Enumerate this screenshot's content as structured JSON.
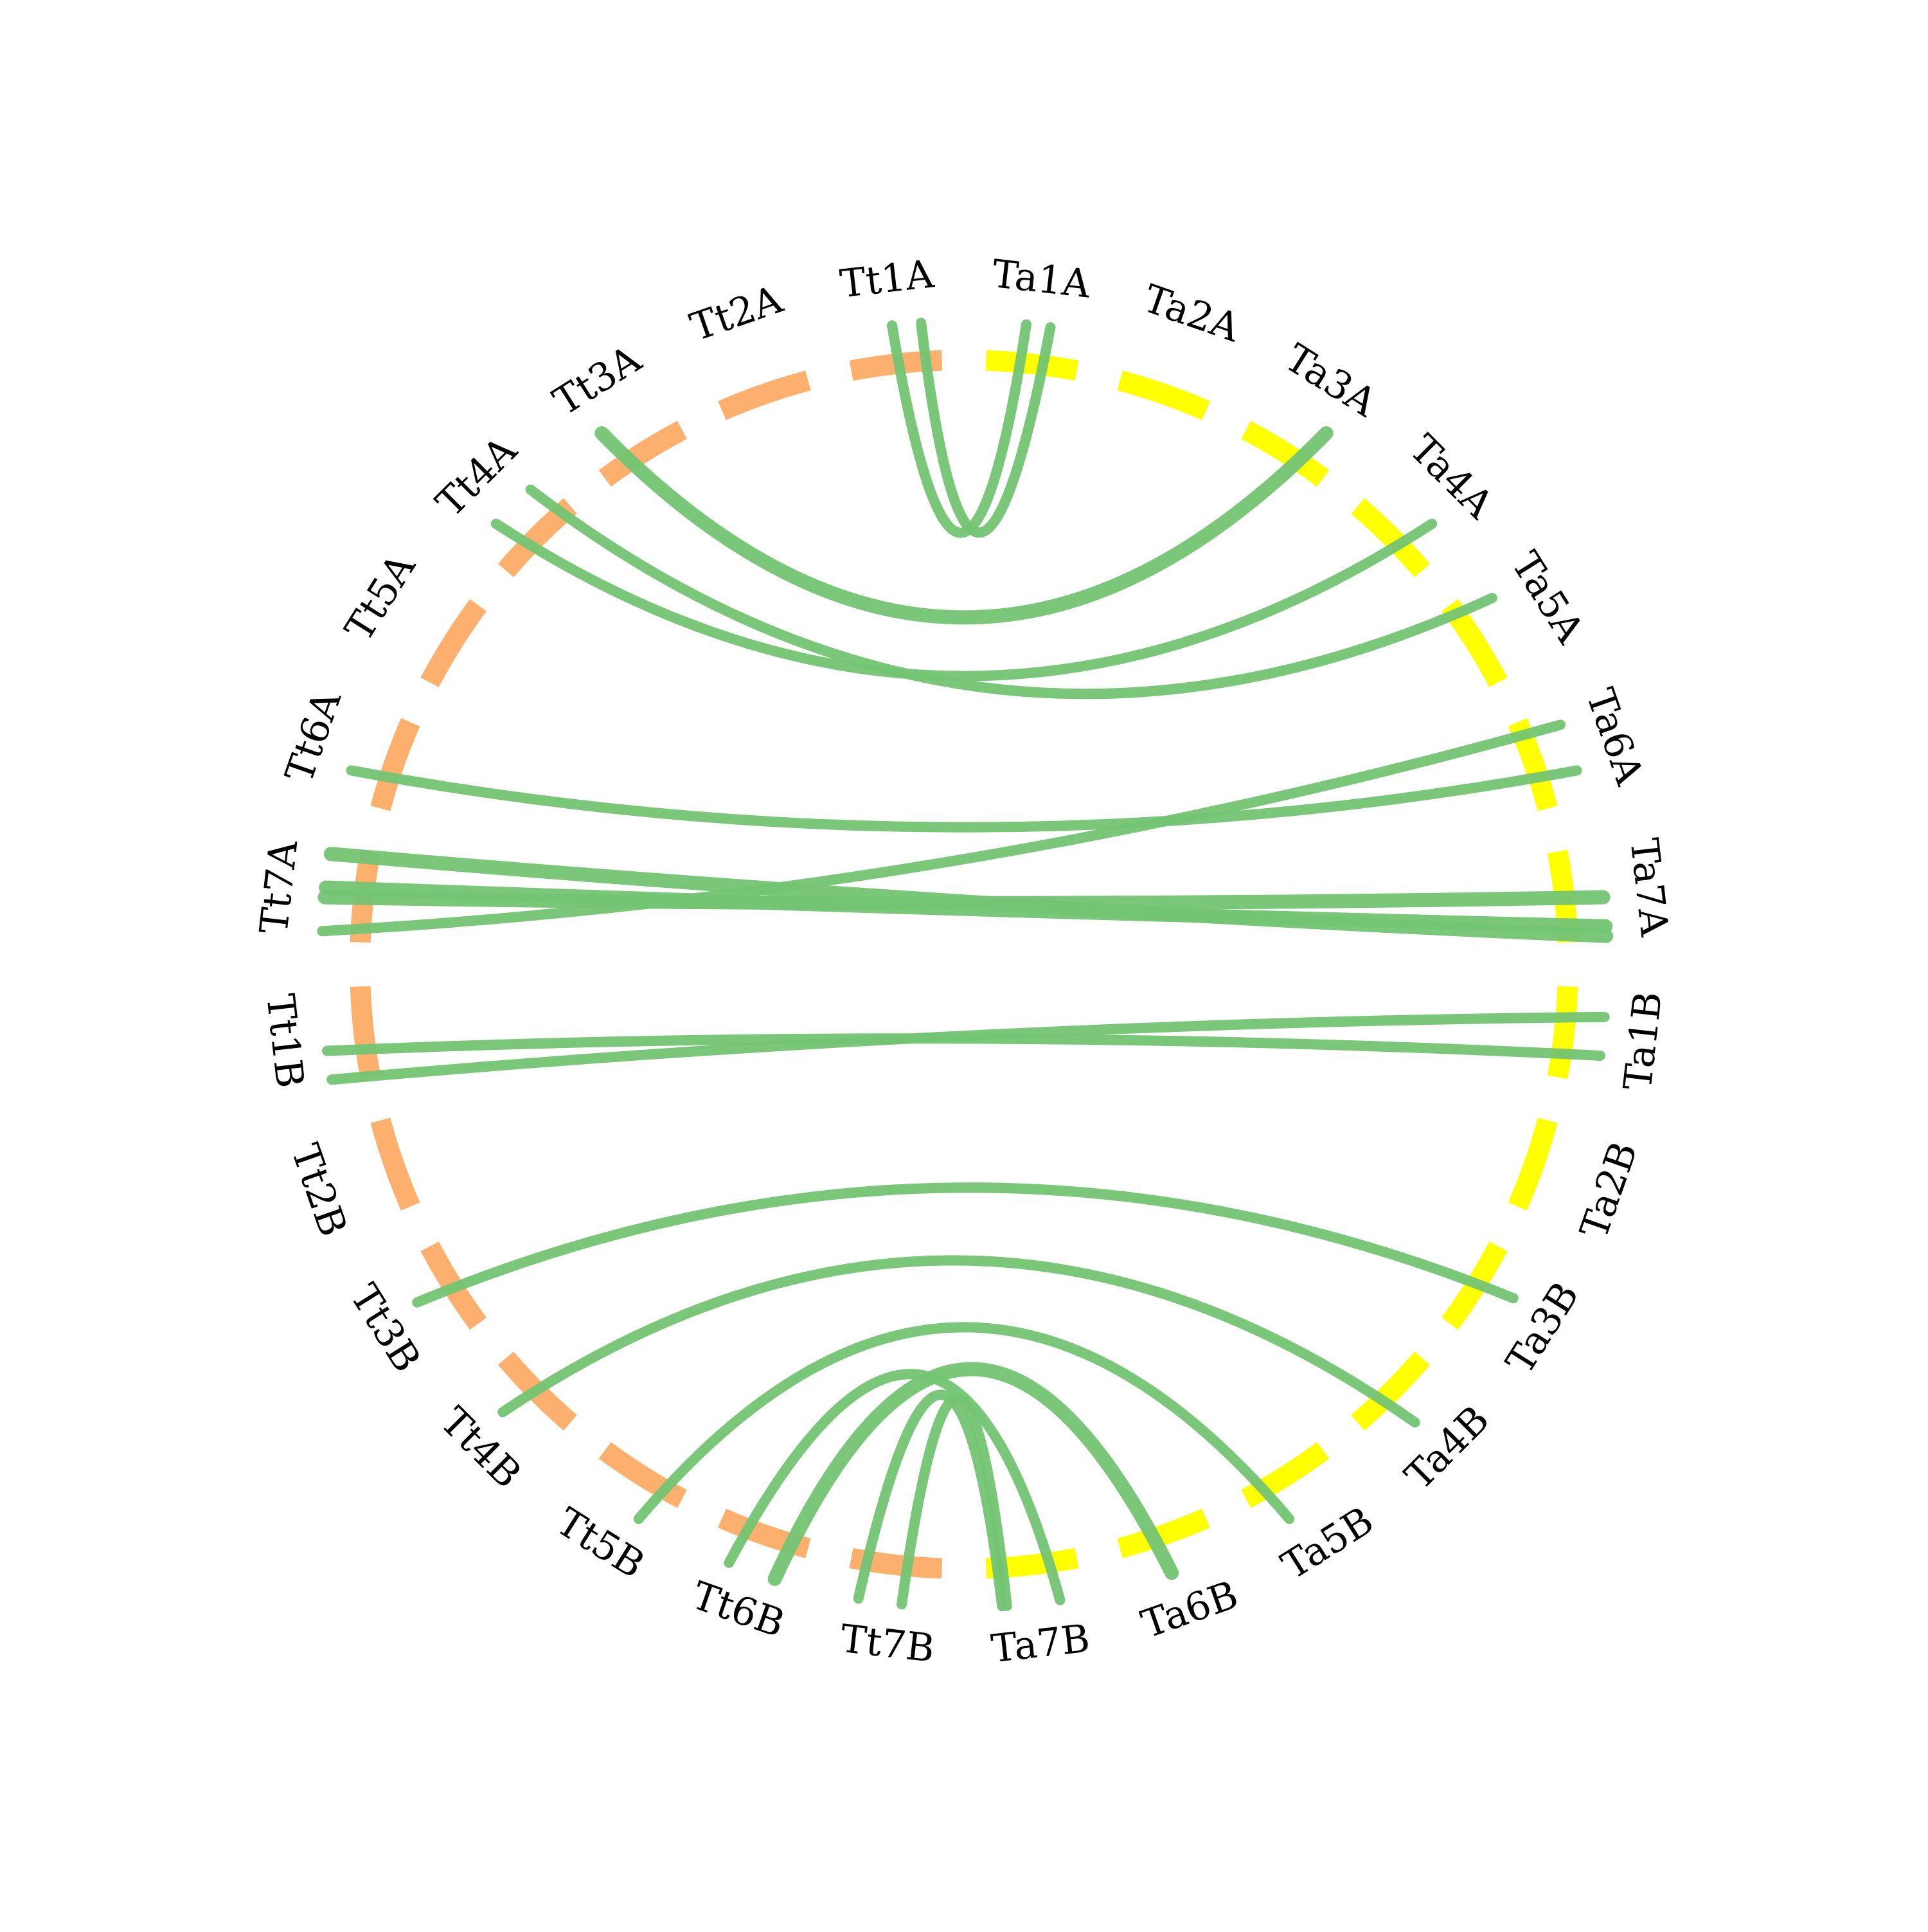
{
  "colors": {
    "group_tt": "#FDB06E",
    "group_ta": "#FFFF00",
    "link": "#73C473",
    "background": "#FFFFFF"
  },
  "chromosomes": [
    {
      "id": "Tt1A",
      "label": "Tt1A",
      "group": "tt"
    },
    {
      "id": "Tt2A",
      "label": "Tt2A",
      "group": "tt"
    },
    {
      "id": "Tt3A",
      "label": "Tt3A",
      "group": "tt"
    },
    {
      "id": "Tt4A",
      "label": "Tt4A",
      "group": "tt"
    },
    {
      "id": "Tt5A",
      "label": "Tt5A",
      "group": "tt"
    },
    {
      "id": "Tt6A",
      "label": "Tt6A",
      "group": "tt"
    },
    {
      "id": "Tt7A",
      "label": "Tt7A",
      "group": "tt"
    },
    {
      "id": "Tt1B",
      "label": "Tt1B",
      "group": "tt"
    },
    {
      "id": "Tt2B",
      "label": "Tt2B",
      "group": "tt"
    },
    {
      "id": "Tt3B",
      "label": "Tt3B",
      "group": "tt"
    },
    {
      "id": "Tt4B",
      "label": "Tt4B",
      "group": "tt"
    },
    {
      "id": "Tt5B",
      "label": "Tt5B",
      "group": "tt"
    },
    {
      "id": "Tt6B",
      "label": "Tt6B",
      "group": "tt"
    },
    {
      "id": "Tt7B",
      "label": "Tt7B",
      "group": "tt"
    },
    {
      "id": "Ta7B",
      "label": "Ta7B",
      "group": "ta"
    },
    {
      "id": "Ta6B",
      "label": "Ta6B",
      "group": "ta"
    },
    {
      "id": "Ta5B",
      "label": "Ta5B",
      "group": "ta"
    },
    {
      "id": "Ta4B",
      "label": "Ta4B",
      "group": "ta"
    },
    {
      "id": "Ta3B",
      "label": "Ta3B",
      "group": "ta"
    },
    {
      "id": "Ta2B",
      "label": "Ta2B",
      "group": "ta"
    },
    {
      "id": "Ta1B",
      "label": "Ta1B",
      "group": "ta"
    },
    {
      "id": "Ta7A",
      "label": "Ta7A",
      "group": "ta"
    },
    {
      "id": "Ta6A",
      "label": "Ta6A",
      "group": "ta"
    },
    {
      "id": "Ta5A",
      "label": "Ta5A",
      "group": "ta"
    },
    {
      "id": "Ta4A",
      "label": "Ta4A",
      "group": "ta"
    },
    {
      "id": "Ta3A",
      "label": "Ta3A",
      "group": "ta"
    },
    {
      "id": "Ta2A",
      "label": "Ta2A",
      "group": "ta"
    },
    {
      "id": "Ta1A",
      "label": "Ta1A",
      "group": "ta"
    }
  ],
  "links": [
    {
      "from": "Tt1A",
      "from_pos": 0.5,
      "to": "Ta1A",
      "to_pos": 0.4,
      "weight": 2
    },
    {
      "from": "Tt1A",
      "from_pos": 0.8,
      "to": "Ta1A",
      "to_pos": 0.65,
      "weight": 2
    },
    {
      "from": "Tt3A",
      "from_pos": 0.25,
      "to": "Ta3A",
      "to_pos": 0.75,
      "weight": 3
    },
    {
      "from": "Tt4A",
      "from_pos": 0.3,
      "to": "Ta4A",
      "to_pos": 0.7,
      "weight": 2
    },
    {
      "from": "Tt4A",
      "from_pos": 0.8,
      "to": "Ta5A",
      "to_pos": 0.2,
      "weight": 2
    },
    {
      "from": "Tt6A",
      "from_pos": 0.3,
      "to": "Ta6A",
      "to_pos": 0.7,
      "weight": 2
    },
    {
      "from": "Tt7A",
      "from_pos": 0.1,
      "to": "Ta6A",
      "to_pos": 0.2,
      "weight": 2
    },
    {
      "from": "Tt7A",
      "from_pos": 0.45,
      "to": "Ta7A",
      "to_pos": 0.55,
      "weight": 3
    },
    {
      "from": "Tt7A",
      "from_pos": 0.55,
      "to": "Ta7A",
      "to_pos": 0.85,
      "weight": 3
    },
    {
      "from": "Tt7A",
      "from_pos": 0.9,
      "to": "Ta7A",
      "to_pos": 0.95,
      "weight": 3
    },
    {
      "from": "Tt1B",
      "from_pos": 0.05,
      "to": "Ta1B",
      "to_pos": 0.3,
      "weight": 2
    },
    {
      "from": "Tt1B",
      "from_pos": 0.35,
      "to": "Ta1B",
      "to_pos": 0.7,
      "weight": 2
    },
    {
      "from": "Tt3B",
      "from_pos": 0.55,
      "to": "Ta3B",
      "to_pos": 0.4,
      "weight": 2
    },
    {
      "from": "Tt4B",
      "from_pos": 0.6,
      "to": "Ta4B",
      "to_pos": 0.55,
      "weight": 2
    },
    {
      "from": "Tt5B",
      "from_pos": 0.3,
      "to": "Ta5B",
      "to_pos": 0.7,
      "weight": 2
    },
    {
      "from": "Tt6B",
      "from_pos": 0.25,
      "to": "Ta6B",
      "to_pos": 0.55,
      "weight": 3
    },
    {
      "from": "Tt7B",
      "from_pos": 0.85,
      "to": "Ta7B",
      "to_pos": 0.85,
      "weight": 2
    },
    {
      "from": "Tt6B",
      "from_pos": 0.75,
      "to": "Ta7B",
      "to_pos": 0.25,
      "weight": 2
    },
    {
      "from": "Tt7B",
      "from_pos": 0.4,
      "to": "Ta7B",
      "to_pos": 0.8,
      "weight": 2
    }
  ]
}
